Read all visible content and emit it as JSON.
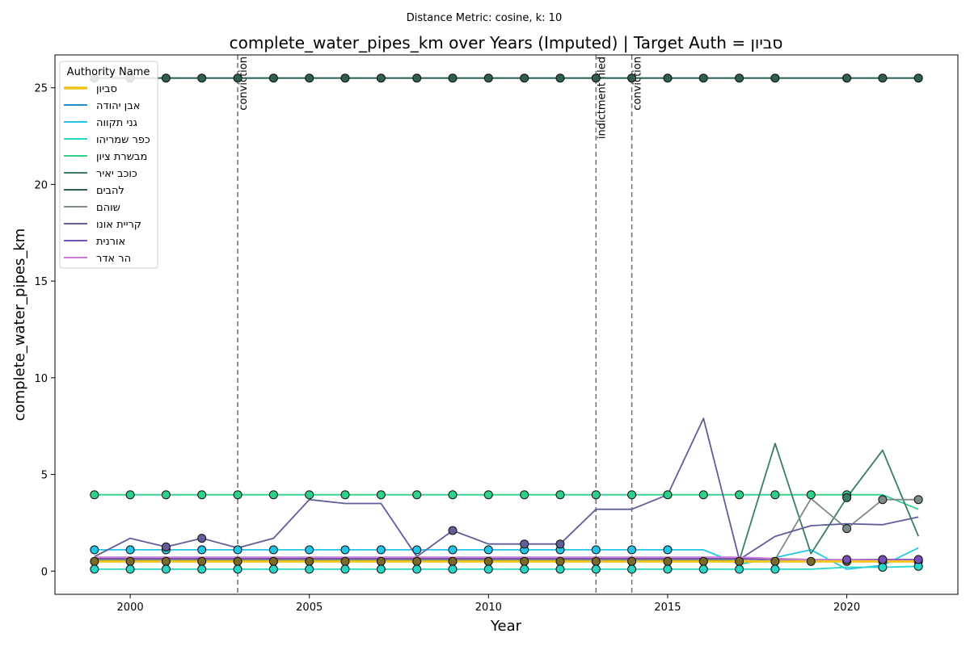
{
  "chart_data": {
    "type": "line",
    "suptitle": "Distance Metric: cosine, k: 10",
    "title": "complete_water_pipes_km over Years (Imputed) | Target Auth = סביון",
    "xlabel": "Year",
    "ylabel": "complete_water_pipes_km",
    "xlim": [
      1997.9,
      2023.1
    ],
    "ylim": [
      -1.2,
      26.7
    ],
    "xticks": [
      2000,
      2005,
      2010,
      2015,
      2020
    ],
    "yticks": [
      0,
      5,
      10,
      15,
      20,
      25
    ],
    "grid": false,
    "legend": {
      "title": "Authority Name",
      "placement": "top-left"
    },
    "events": [
      {
        "x": 2003,
        "label": "conviction"
      },
      {
        "x": 2013,
        "label": "indictment filed"
      },
      {
        "x": 2014,
        "label": "conviction"
      }
    ],
    "x": [
      1999,
      2000,
      2001,
      2002,
      2003,
      2004,
      2005,
      2006,
      2007,
      2008,
      2009,
      2010,
      2011,
      2012,
      2013,
      2014,
      2015,
      2016,
      2017,
      2018,
      2019,
      2020,
      2021,
      2022
    ],
    "series": [
      {
        "name": "סביון",
        "color": "#f2c418",
        "target": true,
        "values": [
          0.5,
          0.5,
          0.5,
          0.5,
          0.5,
          0.5,
          0.5,
          0.5,
          0.5,
          0.5,
          0.5,
          0.5,
          0.5,
          0.5,
          0.5,
          0.5,
          0.5,
          0.5,
          0.5,
          0.5,
          0.5,
          0.5,
          0.5,
          0.5
        ],
        "markers": [
          0,
          1,
          2,
          3,
          4,
          5,
          6,
          7,
          8,
          9,
          10,
          11,
          12,
          13,
          14,
          15,
          16,
          17,
          18,
          19,
          20,
          21,
          22,
          23
        ]
      },
      {
        "name": "אבן יהודה",
        "color": "#1f8ecb",
        "values": [
          25.5,
          25.5,
          25.5,
          25.5,
          25.5,
          25.5,
          25.5,
          25.5,
          25.5,
          25.5,
          25.5,
          25.5,
          25.5,
          25.5,
          25.5,
          25.5,
          25.5,
          25.5,
          25.5,
          25.5,
          25.5,
          25.5,
          25.5,
          25.5
        ],
        "markers": []
      },
      {
        "name": "גני תקווה",
        "color": "#22c5e6",
        "values": [
          1.1,
          1.1,
          1.1,
          1.1,
          1.1,
          1.1,
          1.1,
          1.1,
          1.1,
          1.1,
          1.1,
          1.1,
          1.1,
          1.1,
          1.1,
          1.1,
          1.1,
          1.1,
          0.35,
          0.7,
          1.1,
          0.1,
          0.3,
          1.2
        ],
        "markers": [
          0,
          1,
          2,
          3,
          4,
          5,
          6,
          7,
          8,
          9,
          10,
          11,
          12,
          13,
          14,
          15,
          16
        ]
      },
      {
        "name": "כפר שמריהו",
        "color": "#27d6c4",
        "values": [
          0.1,
          0.1,
          0.1,
          0.1,
          0.1,
          0.1,
          0.1,
          0.1,
          0.1,
          0.1,
          0.1,
          0.1,
          0.1,
          0.1,
          0.1,
          0.1,
          0.1,
          0.1,
          0.1,
          0.1,
          0.1,
          0.2,
          0.2,
          0.25
        ],
        "markers": [
          0,
          1,
          2,
          3,
          4,
          5,
          6,
          7,
          8,
          9,
          10,
          11,
          12,
          13,
          14,
          15,
          16,
          17,
          18,
          19,
          22,
          23
        ]
      },
      {
        "name": "מבשרת ציון",
        "color": "#2fcf8c",
        "values": [
          3.95,
          3.95,
          3.95,
          3.95,
          3.95,
          3.95,
          3.95,
          3.95,
          3.95,
          3.95,
          3.95,
          3.95,
          3.95,
          3.95,
          3.95,
          3.95,
          3.95,
          3.95,
          3.95,
          3.95,
          3.95,
          3.95,
          3.95,
          3.2
        ],
        "markers": [
          0,
          1,
          2,
          3,
          4,
          5,
          6,
          7,
          8,
          9,
          10,
          11,
          12,
          13,
          14,
          15,
          16,
          17,
          18,
          19,
          20,
          21
        ]
      },
      {
        "name": "כוכב יאיר",
        "color": "#3a7d66",
        "values": [
          0.55,
          0.55,
          0.55,
          0.55,
          0.55,
          0.55,
          0.55,
          0.55,
          0.55,
          0.55,
          0.55,
          0.55,
          0.55,
          0.55,
          0.55,
          0.55,
          0.55,
          0.55,
          0.55,
          6.6,
          0.9,
          3.8,
          6.25,
          1.8
        ],
        "markers": [
          21
        ]
      },
      {
        "name": "להבים",
        "color": "#2f5e52",
        "values": [
          25.5,
          25.5,
          25.5,
          25.5,
          25.5,
          25.5,
          25.5,
          25.5,
          25.5,
          25.5,
          25.5,
          25.5,
          25.5,
          25.5,
          25.5,
          25.5,
          25.5,
          25.5,
          25.5,
          25.5,
          25.5,
          25.5,
          25.5,
          25.5
        ],
        "markers": [
          0,
          1,
          2,
          3,
          4,
          5,
          6,
          7,
          8,
          9,
          10,
          11,
          12,
          13,
          14,
          15,
          16,
          17,
          18,
          19,
          21,
          22,
          23
        ]
      },
      {
        "name": "שוהם",
        "color": "#7c8a8a",
        "values": [
          0.6,
          0.6,
          0.6,
          0.6,
          0.6,
          0.6,
          0.6,
          0.6,
          0.6,
          0.6,
          0.6,
          0.6,
          0.6,
          0.6,
          0.6,
          0.6,
          0.6,
          0.6,
          0.6,
          0.6,
          3.75,
          2.2,
          3.7,
          3.7
        ],
        "markers": [
          21,
          22,
          23
        ]
      },
      {
        "name": "קריית אונו",
        "color": "#5f5e99",
        "values": [
          0.75,
          1.7,
          1.25,
          1.7,
          1.2,
          1.7,
          3.7,
          3.5,
          3.5,
          0.75,
          2.1,
          1.4,
          1.4,
          1.4,
          3.2,
          3.2,
          3.95,
          7.9,
          0.6,
          1.8,
          2.35,
          2.45,
          2.4,
          2.8
        ],
        "markers": [
          2,
          3,
          10,
          12,
          13
        ]
      },
      {
        "name": "אורנית",
        "color": "#7a4fb5",
        "values": [
          0.65,
          0.65,
          0.65,
          0.65,
          0.65,
          0.65,
          0.65,
          0.65,
          0.65,
          0.65,
          0.65,
          0.65,
          0.65,
          0.65,
          0.65,
          0.65,
          0.65,
          0.65,
          0.65,
          0.6,
          0.6,
          0.6,
          0.6,
          0.6
        ],
        "markers": [
          21,
          22,
          23
        ]
      },
      {
        "name": "הר אדר",
        "color": "#cc79d6",
        "values": [
          0.72,
          0.72,
          0.72,
          0.72,
          0.72,
          0.72,
          0.72,
          0.72,
          0.72,
          0.72,
          0.72,
          0.72,
          0.72,
          0.72,
          0.72,
          0.72,
          0.72,
          0.72,
          0.72,
          0.65,
          0.6,
          0.6,
          0.55,
          0.55
        ],
        "markers": []
      }
    ]
  }
}
